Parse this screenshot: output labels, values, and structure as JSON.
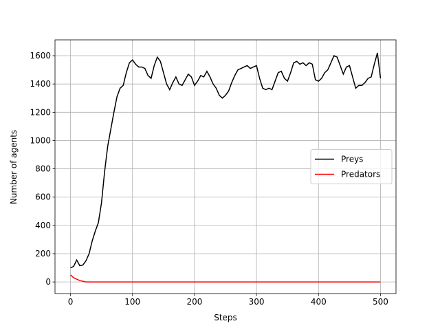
{
  "chart_data": {
    "type": "line",
    "x_label": "Steps",
    "y_label": "Number of agents",
    "x": [
      0,
      5,
      10,
      15,
      20,
      25,
      30,
      35,
      40,
      45,
      50,
      55,
      60,
      65,
      70,
      75,
      80,
      85,
      90,
      95,
      100,
      105,
      110,
      115,
      120,
      125,
      130,
      135,
      140,
      145,
      150,
      155,
      160,
      165,
      170,
      175,
      180,
      185,
      190,
      195,
      200,
      205,
      210,
      215,
      220,
      225,
      230,
      235,
      240,
      245,
      250,
      255,
      260,
      265,
      270,
      275,
      280,
      285,
      290,
      295,
      300,
      305,
      310,
      315,
      320,
      325,
      330,
      335,
      340,
      345,
      350,
      355,
      360,
      365,
      370,
      375,
      380,
      385,
      390,
      395,
      400,
      405,
      410,
      415,
      420,
      425,
      430,
      435,
      440,
      445,
      450,
      455,
      460,
      465,
      470,
      475,
      480,
      485,
      490,
      495,
      500
    ],
    "series": [
      {
        "name": "Preys",
        "color": "#000000",
        "values": [
          100,
          110,
          155,
          115,
          120,
          150,
          200,
          290,
          360,
          420,
          560,
          780,
          960,
          1080,
          1200,
          1310,
          1370,
          1390,
          1480,
          1550,
          1570,
          1540,
          1520,
          1520,
          1510,
          1460,
          1440,
          1530,
          1590,
          1560,
          1480,
          1400,
          1360,
          1410,
          1450,
          1400,
          1390,
          1430,
          1470,
          1450,
          1390,
          1420,
          1460,
          1450,
          1490,
          1450,
          1400,
          1370,
          1320,
          1300,
          1320,
          1350,
          1410,
          1460,
          1500,
          1510,
          1520,
          1530,
          1510,
          1520,
          1530,
          1440,
          1370,
          1360,
          1370,
          1360,
          1420,
          1480,
          1490,
          1440,
          1420,
          1480,
          1550,
          1560,
          1540,
          1550,
          1530,
          1550,
          1540,
          1430,
          1420,
          1440,
          1480,
          1500,
          1550,
          1600,
          1590,
          1530,
          1470,
          1520,
          1530,
          1450,
          1370,
          1390,
          1390,
          1410,
          1440,
          1450,
          1540,
          1620,
          1440
        ]
      },
      {
        "name": "Predators",
        "color": "#ff0000",
        "values": [
          50,
          30,
          20,
          10,
          5,
          0,
          0,
          0,
          0,
          0,
          0,
          0,
          0,
          0,
          0,
          0,
          0,
          0,
          0,
          0,
          0,
          0,
          0,
          0,
          0,
          0,
          0,
          0,
          0,
          0,
          0,
          0,
          0,
          0,
          0,
          0,
          0,
          0,
          0,
          0,
          0,
          0,
          0,
          0,
          0,
          0,
          0,
          0,
          0,
          0,
          0,
          0,
          0,
          0,
          0,
          0,
          0,
          0,
          0,
          0,
          0,
          0,
          0,
          0,
          0,
          0,
          0,
          0,
          0,
          0,
          0,
          0,
          0,
          0,
          0,
          0,
          0,
          0,
          0,
          0,
          0,
          0,
          0,
          0,
          0,
          0,
          0,
          0,
          0,
          0,
          0,
          0,
          0,
          0,
          0,
          0,
          0,
          0,
          0,
          0,
          0
        ]
      }
    ],
    "xlim": [
      -25,
      525
    ],
    "xticks": [
      0,
      100,
      200,
      300,
      400,
      500
    ],
    "ylim": [
      -82,
      1712
    ],
    "yticks": [
      0,
      200,
      400,
      600,
      800,
      1000,
      1200,
      1400,
      1600
    ],
    "grid": true,
    "legend": "center right"
  }
}
